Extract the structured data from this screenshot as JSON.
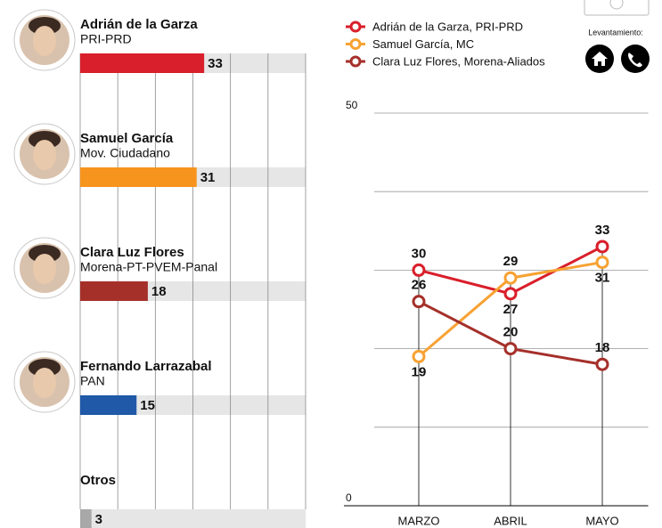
{
  "chart_data": [
    {
      "type": "hbar",
      "categories": [
        "Adrián de la Garza",
        "Samuel García",
        "Clara Luz Flores",
        "Fernando Larrazabal",
        "Otros"
      ],
      "subtitles": [
        "PRI-PRD",
        "Mov. Ciudadano",
        "Morena-PT-PVEM-Panal",
        "PAN",
        null
      ],
      "values": [
        33,
        31,
        18,
        15,
        3
      ],
      "colors": [
        "#d91f2b",
        "#f7941d",
        "#a5302a",
        "#1f59a8",
        "#a8a8a8"
      ],
      "xlim": [
        0,
        60
      ],
      "minor_xticks": [
        0,
        10,
        20,
        30,
        40,
        50,
        60
      ]
    },
    {
      "type": "line",
      "categories": [
        "MARZO",
        "ABRIL",
        "MAYO"
      ],
      "series": [
        {
          "name": "Adrián de la Garza, PRI-PRD",
          "color": "#d91f2b",
          "values": [
            30,
            27,
            33
          ]
        },
        {
          "name": "Samuel García, MC",
          "color": "#f7a233",
          "values": [
            19,
            29,
            31
          ]
        },
        {
          "name": "Clara Luz Flores, Morena-Aliados",
          "color": "#a5302a",
          "values": [
            26,
            20,
            18
          ]
        }
      ],
      "ylim": [
        0,
        50
      ],
      "yticks": [
        0,
        50
      ],
      "minor_yticks": [
        10,
        20,
        30,
        40
      ],
      "annotation": "Levantamiento:"
    }
  ]
}
